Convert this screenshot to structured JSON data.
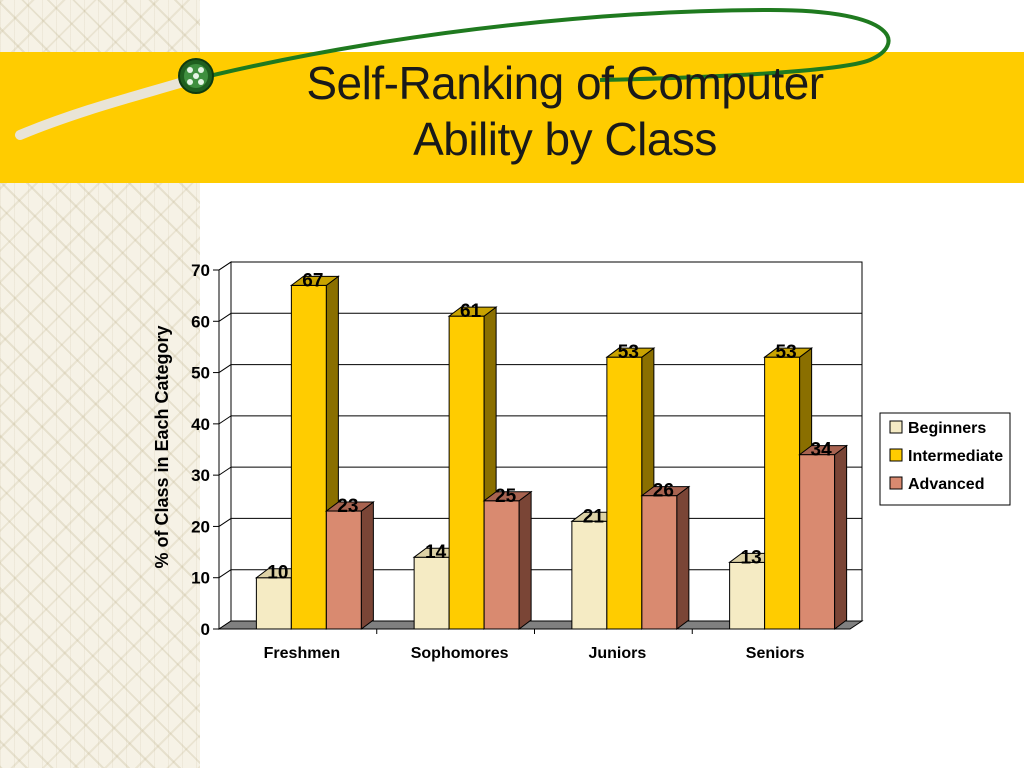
{
  "slide": {
    "title_lines": [
      "Self-Ranking of Computer",
      "Ability by Class"
    ]
  },
  "colors": {
    "band": "#ffcc00",
    "swoosh": "#1f7a1f"
  },
  "chart_data": {
    "type": "bar",
    "title": "",
    "xlabel": "",
    "ylabel": "% of Class in Each Category",
    "categories": [
      "Freshmen",
      "Sophomores",
      "Juniors",
      "Seniors"
    ],
    "series": [
      {
        "name": "Beginners",
        "values": [
          10,
          14,
          21,
          13
        ],
        "color": "#f5ebc4",
        "side": "#c8bd8e",
        "top": "#ddd2a6"
      },
      {
        "name": "Intermediate",
        "values": [
          67,
          61,
          53,
          53
        ],
        "color": "#ffcc00",
        "side": "#8a6f00",
        "top": "#c9a300"
      },
      {
        "name": "Advanced",
        "values": [
          23,
          25,
          26,
          34
        ],
        "color": "#d98a70",
        "side": "#7a4536",
        "top": "#a86350"
      }
    ],
    "ylim": [
      0,
      70
    ],
    "yticks": [
      0,
      10,
      20,
      30,
      40,
      50,
      60,
      70
    ],
    "grid": true,
    "legend_position": "right",
    "three_d": true
  }
}
